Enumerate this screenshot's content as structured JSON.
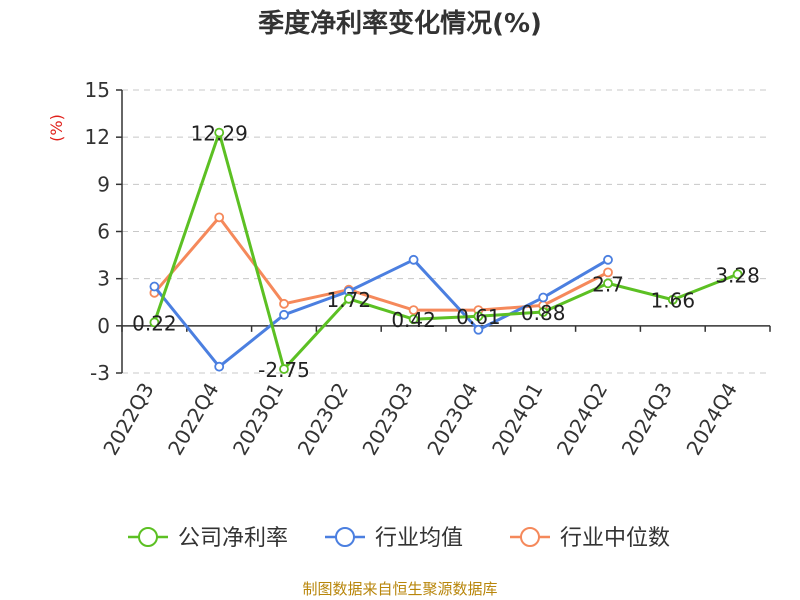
{
  "chart_data": {
    "type": "line",
    "title": "季度净利率变化情况(%)",
    "ylabel": "(%)",
    "ylim": [
      -3,
      15
    ],
    "yticks": [
      -3,
      0,
      3,
      6,
      9,
      12,
      15
    ],
    "grid": true,
    "legend_position": "bottom",
    "categories": [
      "2022Q3",
      "2022Q4",
      "2023Q1",
      "2023Q2",
      "2023Q3",
      "2023Q4",
      "2024Q1",
      "2024Q2",
      "2024Q3",
      "2024Q4"
    ],
    "series": [
      {
        "name": "公司净利率",
        "color": "#5cc023",
        "values": [
          0.22,
          12.29,
          -2.75,
          1.72,
          0.42,
          0.61,
          0.88,
          2.7,
          1.66,
          3.28
        ],
        "labels": [
          "0.22",
          "12.29",
          "-2.75",
          "1.72",
          "0.42",
          "0.61",
          "0.88",
          "2.7",
          "1.66",
          "3.28"
        ]
      },
      {
        "name": "行业均值",
        "color": "#4b7fe0",
        "values": [
          2.5,
          -2.6,
          0.7,
          2.2,
          4.2,
          -0.25,
          1.8,
          4.2,
          null,
          null
        ]
      },
      {
        "name": "行业中位数",
        "color": "#f5895b",
        "values": [
          2.1,
          6.9,
          1.4,
          2.3,
          1.0,
          1.0,
          1.3,
          3.4,
          null,
          null
        ]
      }
    ]
  },
  "source": "制图数据来自恒生聚源数据库"
}
